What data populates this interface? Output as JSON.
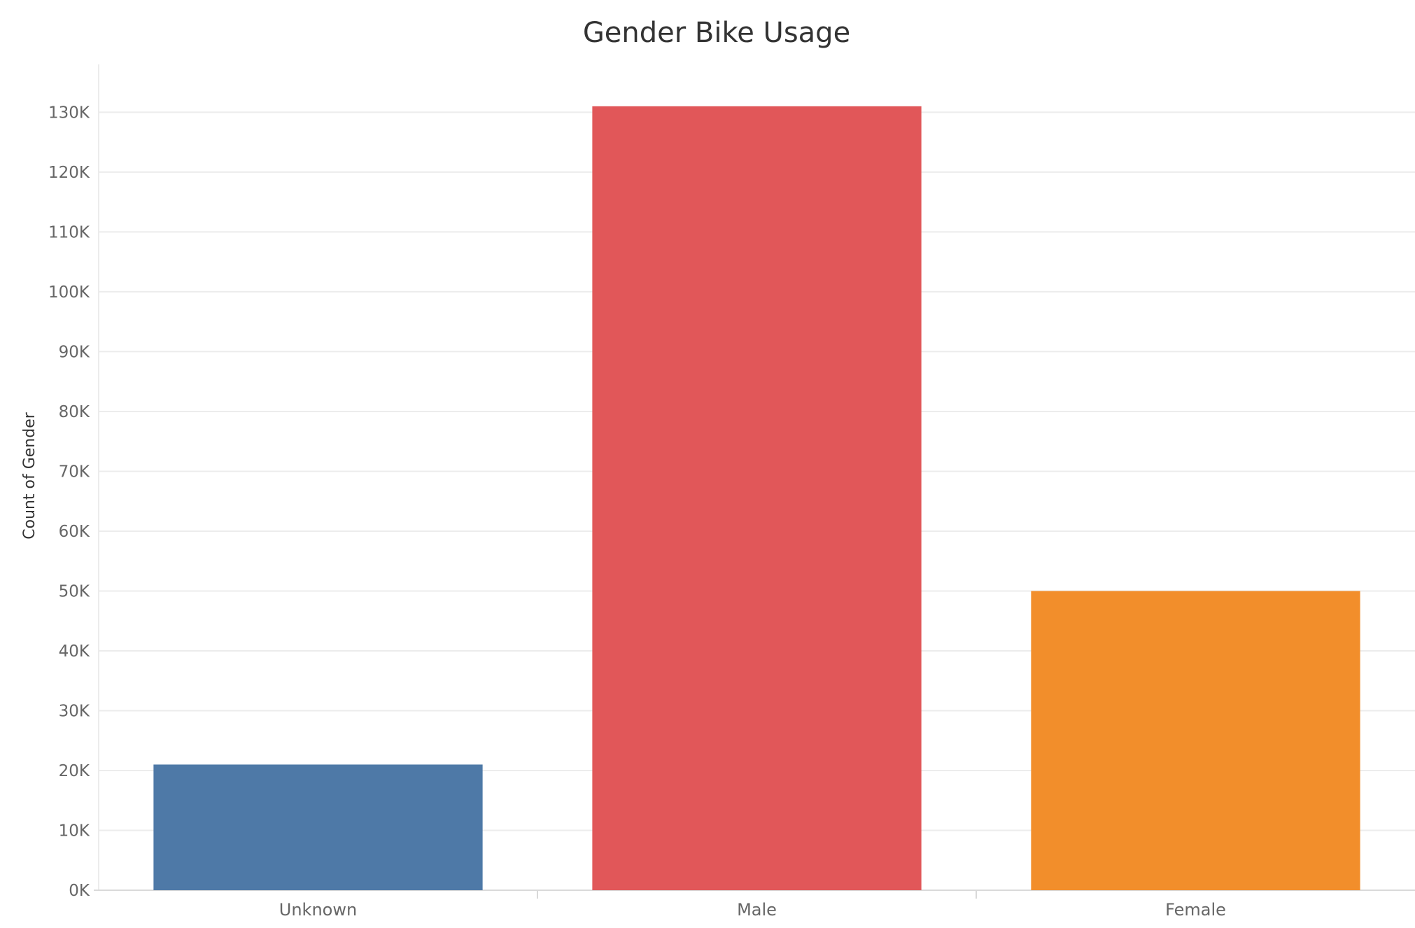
{
  "chart_data": {
    "type": "bar",
    "title": "Gender Bike Usage",
    "xlabel": "",
    "ylabel": "Count of Gender",
    "categories": [
      "Unknown",
      "Male",
      "Female"
    ],
    "values": [
      21000,
      131000,
      50000
    ],
    "colors": [
      "#4e79a7",
      "#e15759",
      "#f28e2b"
    ],
    "ylim": [
      0,
      138000
    ],
    "yticks": [
      0,
      10000,
      20000,
      30000,
      40000,
      50000,
      60000,
      70000,
      80000,
      90000,
      100000,
      110000,
      120000,
      130000
    ],
    "ytick_labels": [
      "0K",
      "10K",
      "20K",
      "30K",
      "40K",
      "50K",
      "60K",
      "70K",
      "80K",
      "90K",
      "100K",
      "110K",
      "120K",
      "130K"
    ],
    "grid": true,
    "legend": "none"
  },
  "colors": {
    "gridline": "#ececec",
    "axis": "#d9d9d9",
    "background": "#ffffff"
  }
}
